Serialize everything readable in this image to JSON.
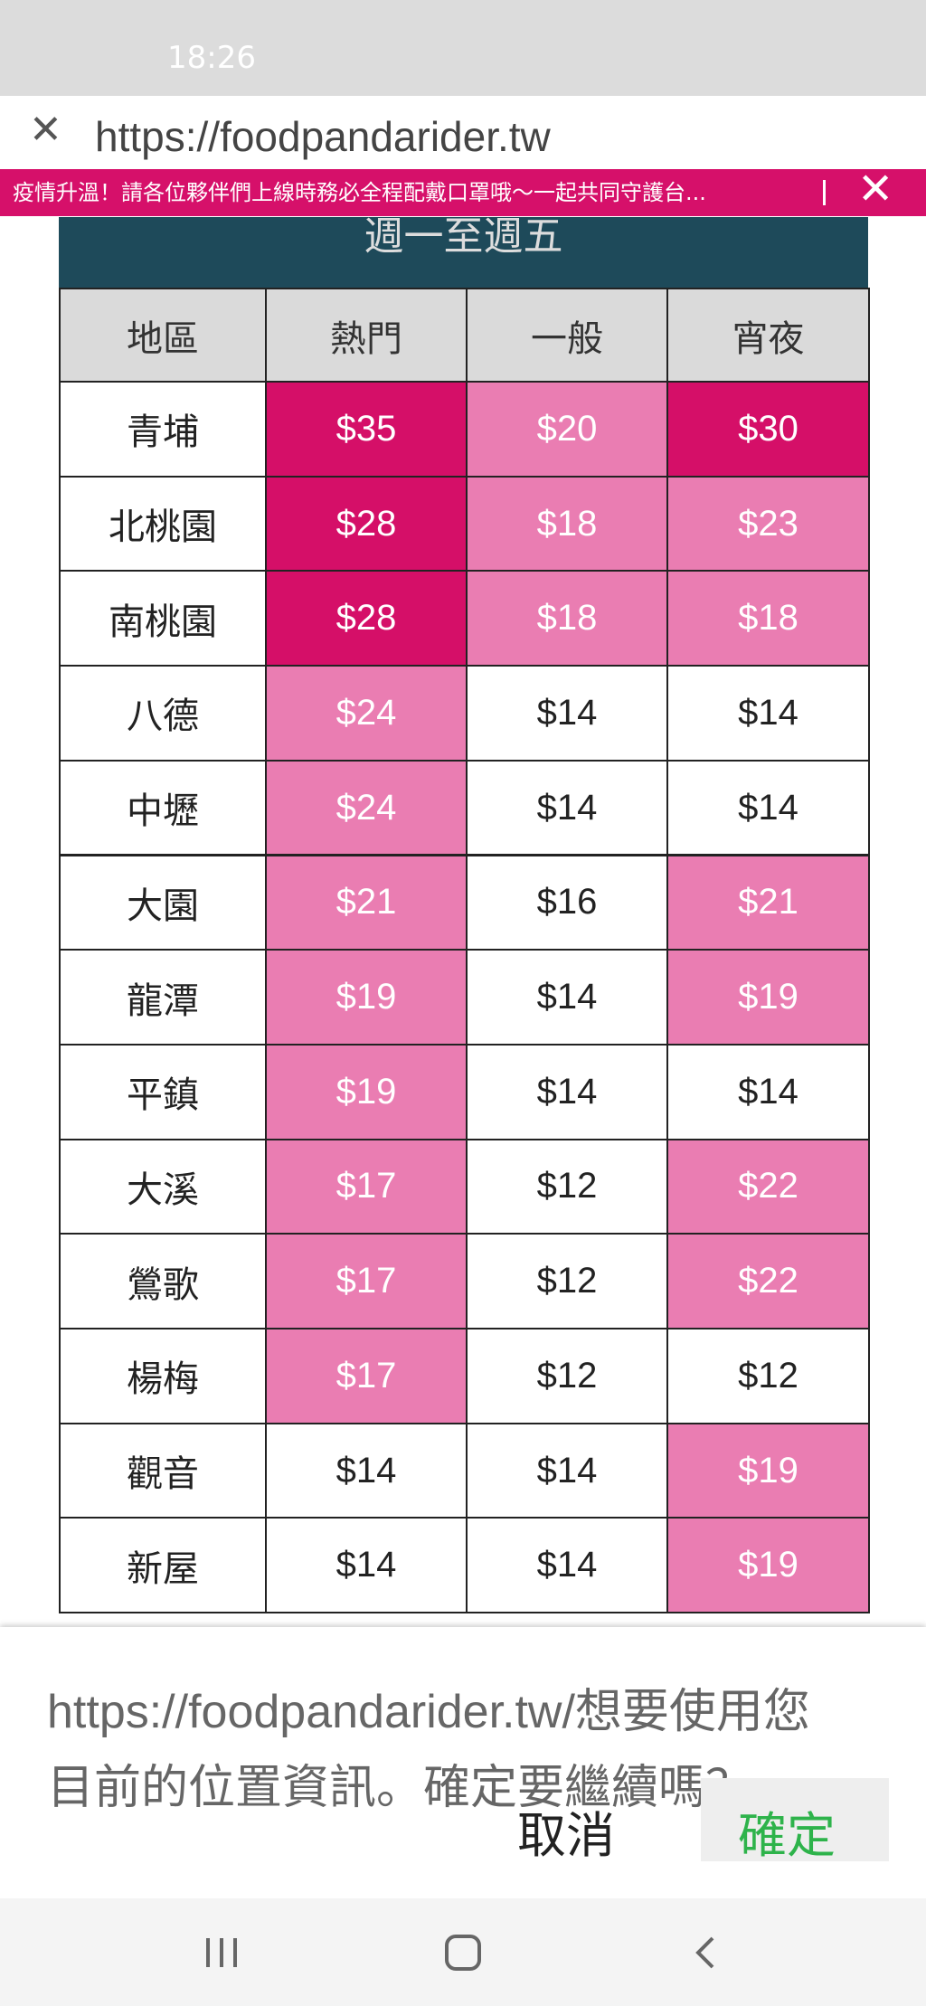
{
  "status_bar": {
    "time": "18:26"
  },
  "browser": {
    "url": "https://foodpandarider.tw"
  },
  "banner": {
    "text": "疫情升溫！請各位夥伴們上線時務必全程配戴口罩哦～一起共同守護台..."
  },
  "table": {
    "title": "週一至週五",
    "columns": [
      "地區",
      "熱門",
      "一般",
      "宵夜"
    ],
    "rows": [
      [
        "青埔",
        "$35",
        "$20",
        "$30"
      ],
      [
        "北桃園",
        "$28",
        "$18",
        "$23"
      ],
      [
        "南桃園",
        "$28",
        "$18",
        "$18"
      ],
      [
        "八德",
        "$24",
        "$14",
        "$14"
      ],
      [
        "中壢",
        "$24",
        "$14",
        "$14"
      ],
      [
        "大園",
        "$21",
        "$16",
        "$21"
      ],
      [
        "龍潭",
        "$19",
        "$14",
        "$19"
      ],
      [
        "平鎮",
        "$19",
        "$14",
        "$14"
      ],
      [
        "大溪",
        "$17",
        "$12",
        "$22"
      ],
      [
        "鶯歌",
        "$17",
        "$12",
        "$22"
      ],
      [
        "楊梅",
        "$17",
        "$12",
        "$12"
      ],
      [
        "觀音",
        "$14",
        "$14",
        "$19"
      ],
      [
        "新屋",
        "$14",
        "$14",
        "$19"
      ]
    ],
    "cell_colors": [
      [
        "#ffffff",
        "#d50f68",
        "#ea7db2",
        "#d50f68"
      ],
      [
        "#ffffff",
        "#d50f68",
        "#ea7db2",
        "#ea7db2"
      ],
      [
        "#ffffff",
        "#d50f68",
        "#ea7db2",
        "#ea7db2"
      ],
      [
        "#ffffff",
        "#ea7db2",
        "#ffffff",
        "#ffffff"
      ],
      [
        "#ffffff",
        "#ea7db2",
        "#ffffff",
        "#ffffff"
      ],
      [
        "#ffffff",
        "#ea7db2",
        "#ffffff",
        "#ea7db2"
      ],
      [
        "#ffffff",
        "#ea7db2",
        "#ffffff",
        "#ea7db2"
      ],
      [
        "#ffffff",
        "#ea7db2",
        "#ffffff",
        "#ffffff"
      ],
      [
        "#ffffff",
        "#ea7db2",
        "#ffffff",
        "#ea7db2"
      ],
      [
        "#ffffff",
        "#ea7db2",
        "#ffffff",
        "#ea7db2"
      ],
      [
        "#ffffff",
        "#ea7db2",
        "#ffffff",
        "#ffffff"
      ],
      [
        "#ffffff",
        "#ffffff",
        "#ffffff",
        "#ea7db2"
      ],
      [
        "#ffffff",
        "#ffffff",
        "#ffffff",
        "#ea7db2"
      ]
    ]
  },
  "dialog": {
    "message": "https://foodpandarider.tw/想要使用您目前的位置資訊。確定要繼續嗎？",
    "cancel": "取消",
    "confirm": "確定"
  }
}
